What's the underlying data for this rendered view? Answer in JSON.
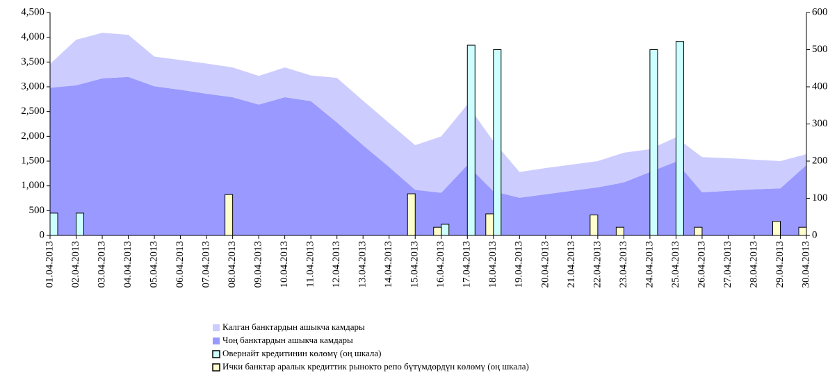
{
  "chart_data": {
    "type": "stacked-area-bar",
    "categories": [
      "01.04.2013",
      "02.04.2013",
      "03.04.2013",
      "04.04.2013",
      "05.04.2013",
      "06.04.2013",
      "07.04.2013",
      "08.04.2013",
      "09.04.2013",
      "10.04.2013",
      "11.04.2013",
      "12.04.2013",
      "13.04.2013",
      "14.04.2013",
      "15.04.2013",
      "16.04.2013",
      "17.04.2013",
      "18.04.2013",
      "19.04.2013",
      "20.04.2013",
      "21.04.2013",
      "22.04.2013",
      "23.04.2013",
      "24.04.2013",
      "25.04.2013",
      "26.04.2013",
      "27.04.2013",
      "28.04.2013",
      "29.04.2013",
      "30.04.2013"
    ],
    "series": [
      {
        "name": "Калган банктардын ашыкча камдары",
        "color": "#ccccff",
        "kind": "area",
        "axis": "y",
        "values": [
          480,
          920,
          920,
          850,
          600,
          600,
          610,
          600,
          580,
          600,
          520,
          900,
          900,
          890,
          900,
          1140,
          1220,
          1010,
          520,
          530,
          530,
          530,
          600,
          460,
          490,
          710,
          660,
          600,
          550,
          220
        ]
      },
      {
        "name": "Чоң банктардын ашыкча камдары",
        "color": "#9999ff",
        "kind": "area",
        "axis": "y",
        "values": [
          2980,
          3030,
          3170,
          3200,
          3010,
          2940,
          2860,
          2790,
          2640,
          2790,
          2710,
          2280,
          1820,
          1380,
          920,
          860,
          1420,
          890,
          760,
          830,
          900,
          970,
          1070,
          1280,
          1490,
          870,
          900,
          930,
          950,
          1420
        ]
      },
      {
        "name": "Овернайт кредитинин көлөмү (оң шкала)",
        "color": "#ccffff",
        "kind": "bar",
        "axis": "y2",
        "values": [
          60,
          60,
          null,
          null,
          null,
          null,
          null,
          null,
          null,
          null,
          null,
          null,
          null,
          null,
          null,
          30,
          512,
          500,
          null,
          null,
          null,
          null,
          null,
          500,
          522,
          null,
          null,
          null,
          null,
          null
        ]
      },
      {
        "name": "Ички банктар аралык кредиттик рынокто репо бүтүмдөрдүн көлөмү (оң шкала)",
        "color": "#ffffcc",
        "kind": "bar",
        "axis": "y2",
        "values": [
          null,
          null,
          null,
          null,
          null,
          null,
          null,
          110,
          null,
          null,
          null,
          null,
          null,
          null,
          112,
          22,
          null,
          58,
          null,
          null,
          null,
          55,
          22,
          null,
          null,
          22,
          null,
          null,
          38,
          22
        ]
      }
    ],
    "ylim": [
      0,
      4500
    ],
    "yticks": [
      0,
      500,
      {
        "value": 1000,
        "label": "1,000"
      },
      {
        "value": 1500,
        "label": "1,500"
      },
      {
        "value": 2000,
        "label": "2,000"
      },
      {
        "value": 2500,
        "label": "2,500"
      },
      {
        "value": 3000,
        "label": "3,000"
      },
      {
        "value": 3500,
        "label": "3,500"
      },
      {
        "value": 4000,
        "label": "4,000"
      },
      {
        "value": 4500,
        "label": "4,500"
      }
    ],
    "y2lim": [
      0,
      600
    ],
    "y2ticks": [
      0,
      100,
      200,
      300,
      400,
      500,
      600
    ],
    "grid": false
  }
}
